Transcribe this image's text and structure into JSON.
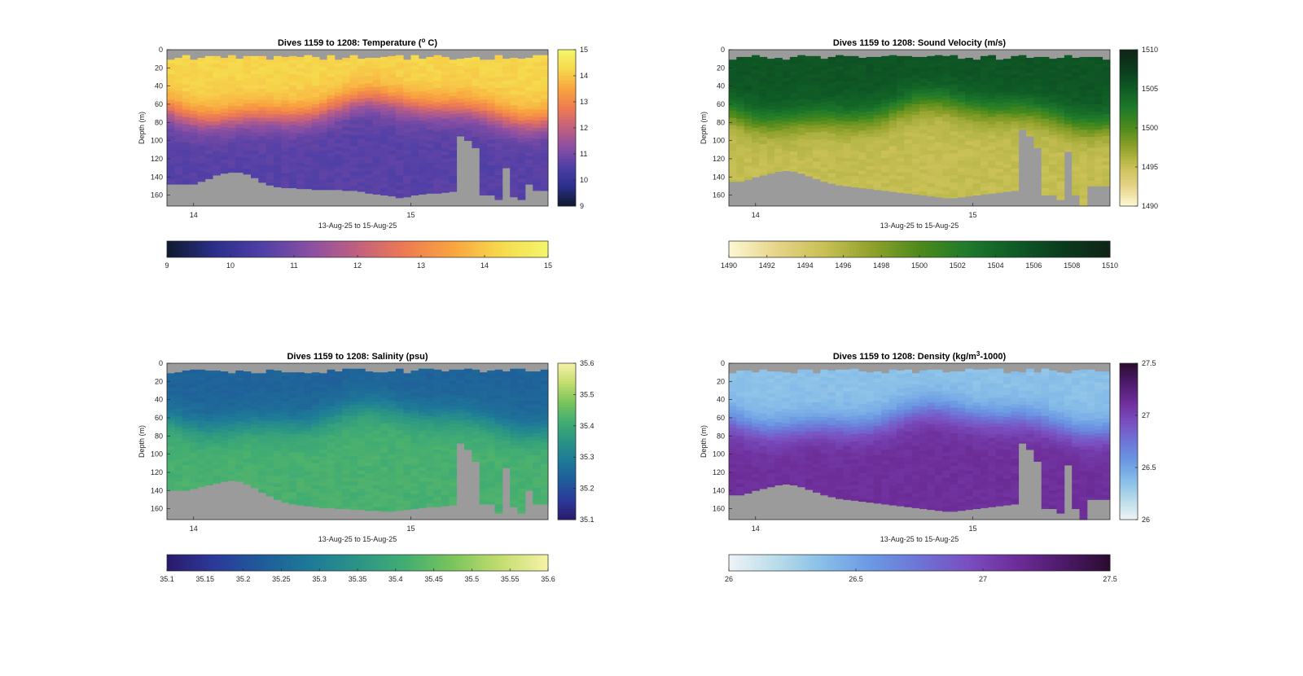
{
  "figure": {
    "background": "#ffffff",
    "nodata_color": "#9b9b9b"
  },
  "chart_data": [
    {
      "id": "temperature",
      "type": "heatmap",
      "title_main": "Dives 1159 to 1208: Temperature (",
      "title_sup": "o",
      "title_end": " C)",
      "xlabel": "13-Aug-25 to 15-Aug-25",
      "ylabel": "Depth (m)",
      "yticks": [
        "0",
        "20",
        "40",
        "60",
        "80",
        "100",
        "120",
        "140",
        "160"
      ],
      "xticks": [
        "14",
        "15"
      ],
      "ylim": [
        0,
        172
      ],
      "dives": 50,
      "colormap": [
        "#0e1a2e",
        "#2b2f8a",
        "#4f3fa6",
        "#8a4fa3",
        "#c1607f",
        "#ee7b52",
        "#f9a43f",
        "#f6d94c",
        "#f5f66b"
      ],
      "clim": [
        9,
        15
      ],
      "colorbar_ticks": [
        "15",
        "14",
        "13",
        "12",
        "11",
        "10",
        "9"
      ],
      "hcolorbar_ticks": [
        "9",
        "10",
        "11",
        "12",
        "13",
        "14",
        "15"
      ],
      "surface_value": 14.2,
      "deep_value": 10.6,
      "thermocline_depth_m": 65,
      "floor_depth_m": [
        148,
        148,
        148,
        148,
        145,
        142,
        138,
        136,
        135,
        135,
        137,
        141,
        146,
        149,
        151,
        152,
        152,
        153,
        153,
        154,
        154,
        154,
        154,
        155,
        155,
        156,
        158,
        159,
        160,
        161,
        163,
        162,
        160,
        159,
        158,
        158,
        157,
        156,
        95,
        100,
        108,
        160,
        160,
        165,
        130,
        162,
        165,
        148,
        155,
        155
      ]
    },
    {
      "id": "sound_velocity",
      "type": "heatmap",
      "title_main": "Dives 1159 to 1208: Sound Velocity (m/s)",
      "title_sup": "",
      "title_end": "",
      "xlabel": "13-Aug-25 to 15-Aug-25",
      "ylabel": "Depth (m)",
      "yticks": [
        "0",
        "20",
        "40",
        "60",
        "80",
        "100",
        "120",
        "140",
        "160"
      ],
      "xticks": [
        "14",
        "15"
      ],
      "ylim": [
        0,
        172
      ],
      "dives": 50,
      "colormap": [
        "#fdf8d4",
        "#e6d488",
        "#c9c056",
        "#8fa12a",
        "#4d8a1c",
        "#1e7a2a",
        "#0f5b26",
        "#0b3b1e",
        "#0f2416"
      ],
      "clim": [
        1490,
        1510
      ],
      "colorbar_ticks": [
        "1510",
        "1505",
        "1500",
        "1495",
        "1490"
      ],
      "hcolorbar_ticks": [
        "1490",
        "1492",
        "1494",
        "1496",
        "1498",
        "1500",
        "1502",
        "1504",
        "1506",
        "1508",
        "1510"
      ],
      "surface_value": 1505.5,
      "deep_value": 1495.2,
      "thermocline_depth_m": 68,
      "floor_depth_m": [
        145,
        145,
        143,
        140,
        138,
        136,
        134,
        133,
        134,
        136,
        139,
        142,
        145,
        147,
        149,
        150,
        151,
        152,
        153,
        154,
        155,
        156,
        157,
        158,
        159,
        160,
        161,
        162,
        163,
        163,
        162,
        161,
        160,
        159,
        158,
        157,
        156,
        155,
        88,
        95,
        108,
        160,
        160,
        165,
        112,
        160,
        172,
        150,
        150,
        150
      ]
    },
    {
      "id": "salinity",
      "type": "heatmap",
      "title_main": "Dives 1159 to 1208: Salinity (psu)",
      "title_sup": "",
      "title_end": "",
      "xlabel": "13-Aug-25 to 15-Aug-25",
      "ylabel": "Depth (m)",
      "yticks": [
        "0",
        "20",
        "40",
        "60",
        "80",
        "100",
        "120",
        "140",
        "160"
      ],
      "xticks": [
        "14",
        "15"
      ],
      "ylim": [
        0,
        172
      ],
      "dives": 50,
      "colormap": [
        "#2a1a6b",
        "#2b3a9a",
        "#1f5c9a",
        "#1e7a98",
        "#2a9486",
        "#42ad72",
        "#7bc45c",
        "#c3dd6f",
        "#f7f2a8"
      ],
      "clim": [
        35.1,
        35.6
      ],
      "colorbar_ticks": [
        "35.6",
        "35.5",
        "35.4",
        "35.3",
        "35.2",
        "35.1"
      ],
      "hcolorbar_ticks": [
        "35.1",
        "35.15",
        "35.2",
        "35.25",
        "35.3",
        "35.35",
        "35.4",
        "35.45",
        "35.5",
        "35.55",
        "35.6"
      ],
      "surface_value": 35.24,
      "deep_value": 35.42,
      "thermocline_depth_m": 60,
      "floor_depth_m": [
        140,
        140,
        140,
        138,
        136,
        134,
        132,
        130,
        129,
        130,
        133,
        137,
        142,
        146,
        150,
        153,
        155,
        156,
        157,
        158,
        159,
        159,
        160,
        160,
        161,
        161,
        162,
        162,
        163,
        163,
        162,
        161,
        160,
        159,
        158,
        158,
        157,
        156,
        88,
        95,
        108,
        155,
        155,
        165,
        115,
        158,
        165,
        140,
        155,
        155
      ]
    },
    {
      "id": "density",
      "type": "heatmap",
      "title_main": "Dives 1159 to 1208: Density (kg/m",
      "title_sup": "3",
      "title_end": "-1000)",
      "xlabel": "13-Aug-25 to 15-Aug-25",
      "ylabel": "Depth (m)",
      "yticks": [
        "0",
        "20",
        "40",
        "60",
        "80",
        "100",
        "120",
        "140",
        "160"
      ],
      "xticks": [
        "14",
        "15"
      ],
      "ylim": [
        0,
        172
      ],
      "dives": 50,
      "colormap": [
        "#eef4f6",
        "#b9dcea",
        "#86bde8",
        "#6b98e3",
        "#6e74d6",
        "#7a4fc0",
        "#6e2e9a",
        "#4d1a6b",
        "#2a0c2e"
      ],
      "clim": [
        26,
        27.5
      ],
      "colorbar_ticks": [
        "27.5",
        "27",
        "26.5",
        "26"
      ],
      "hcolorbar_ticks": [
        "26",
        "26.5",
        "27",
        "27.5"
      ],
      "surface_value": 26.35,
      "deep_value": 27.12,
      "thermocline_depth_m": 62,
      "floor_depth_m": [
        145,
        145,
        143,
        140,
        138,
        136,
        134,
        133,
        134,
        136,
        139,
        142,
        145,
        147,
        149,
        150,
        151,
        152,
        153,
        154,
        155,
        156,
        157,
        158,
        159,
        160,
        161,
        162,
        163,
        163,
        162,
        161,
        160,
        159,
        158,
        157,
        156,
        155,
        88,
        95,
        108,
        160,
        160,
        165,
        112,
        160,
        172,
        150,
        150,
        150
      ]
    }
  ]
}
